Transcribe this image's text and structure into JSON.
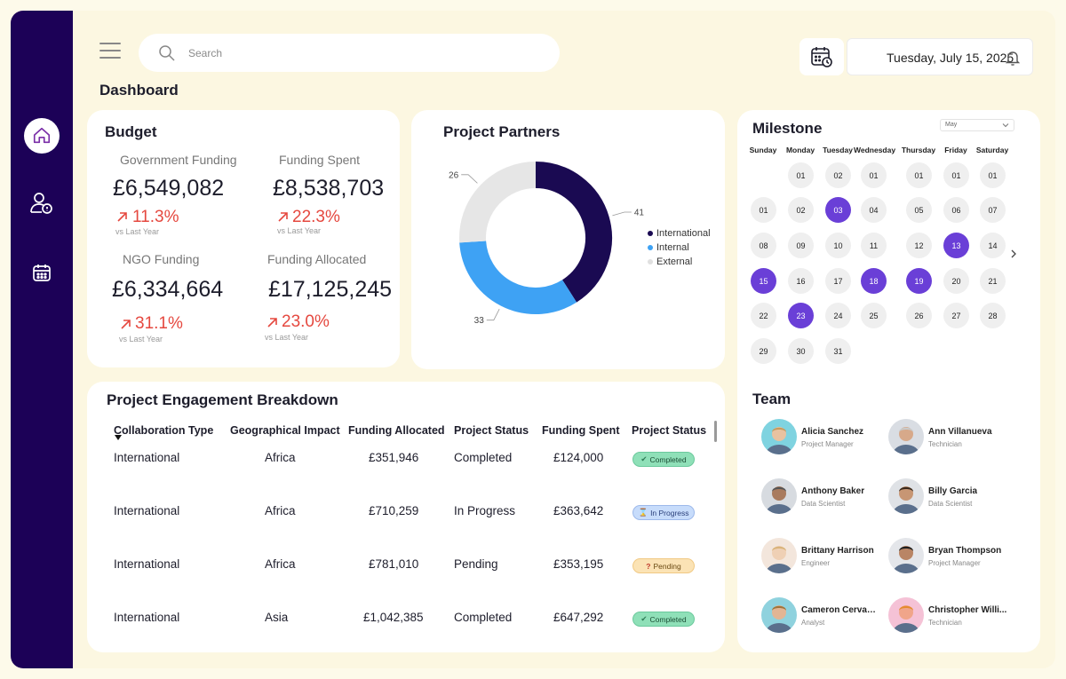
{
  "header": {
    "search_placeholder": "Search",
    "date": "Tuesday, July 15, 2025",
    "page_title": "Dashboard"
  },
  "colors": {
    "sidebar": "#1c0157",
    "international": "#1a0a52",
    "internal": "#3ea2f4",
    "external": "#e6e6e6",
    "highlight": "#6a3fd7",
    "negative": "#e5483f"
  },
  "budget": {
    "title": "Budget",
    "kpis": [
      {
        "label": "Government Funding",
        "value": "£6,549,082",
        "change": "11.3%",
        "sub": "vs Last Year"
      },
      {
        "label": "Funding Spent",
        "value": "£8,538,703",
        "change": "22.3%",
        "sub": "vs Last Year"
      },
      {
        "label": "NGO Funding",
        "value": "£6,334,664",
        "change": "31.1%",
        "sub": "vs Last Year"
      },
      {
        "label": "Funding Allocated",
        "value": "£17,125,245",
        "change": "23.0%",
        "sub": "vs Last Year"
      }
    ]
  },
  "partners": {
    "title": "Project Partners",
    "legend": [
      "International",
      "Internal",
      "External"
    ]
  },
  "chart_data": {
    "type": "pie",
    "title": "Project Partners",
    "donut": true,
    "categories": [
      "International",
      "Internal",
      "External"
    ],
    "values": [
      41,
      33,
      26
    ],
    "legend_position": "right"
  },
  "engagement": {
    "title": "Project Engagement Breakdown",
    "columns": [
      "Collaboration Type",
      "Geographical Impact",
      "Funding Allocated",
      "Project Status",
      "Funding Spent",
      "Project Status"
    ],
    "rows": [
      {
        "type": "International",
        "region": "Africa",
        "allocated": "£351,946",
        "status": "Completed",
        "spent": "£124,000",
        "badge": "Completed"
      },
      {
        "type": "International",
        "region": "Africa",
        "allocated": "£710,259",
        "status": "In Progress",
        "spent": "£363,642",
        "badge": "In Progress"
      },
      {
        "type": "International",
        "region": "Africa",
        "allocated": "£781,010",
        "status": "Pending",
        "spent": "£353,195",
        "badge": "Pending"
      },
      {
        "type": "International",
        "region": "Asia",
        "allocated": "£1,042,385",
        "status": "Completed",
        "spent": "£647,292",
        "badge": "Completed"
      }
    ]
  },
  "milestone": {
    "title": "Milestone",
    "month": "May",
    "weekdays": [
      "Sunday",
      "Monday",
      "Tuesday",
      "Wednesday",
      "Thursday",
      "Friday",
      "Saturday"
    ],
    "weeks": [
      [
        "",
        "01",
        "02",
        "01",
        "01",
        "01",
        "01"
      ],
      [
        "01",
        "02",
        "03",
        "04",
        "05",
        "06",
        "07"
      ],
      [
        "08",
        "09",
        "10",
        "11",
        "12",
        "13",
        "14"
      ],
      [
        "15",
        "16",
        "17",
        "18",
        "19",
        "20",
        "21"
      ],
      [
        "22",
        "23",
        "24",
        "25",
        "26",
        "27",
        "28"
      ],
      [
        "29",
        "30",
        "31",
        "",
        "",
        "",
        ""
      ]
    ],
    "highlighted": [
      "03",
      "13",
      "15",
      "18",
      "19",
      "23"
    ]
  },
  "team": {
    "title": "Team",
    "members": [
      {
        "name": "Alicia Sanchez",
        "role": "Project Manager"
      },
      {
        "name": "Ann Villanueva",
        "role": "Technician"
      },
      {
        "name": "Anthony Baker",
        "role": "Data Scientist"
      },
      {
        "name": "Billy Garcia",
        "role": "Data Scientist"
      },
      {
        "name": "Brittany Harrison",
        "role": "Engineer"
      },
      {
        "name": "Bryan Thompson",
        "role": "Project Manager"
      },
      {
        "name": "Cameron Cervant...",
        "role": "Analyst"
      },
      {
        "name": "Christopher Willi...",
        "role": "Technician"
      }
    ]
  }
}
